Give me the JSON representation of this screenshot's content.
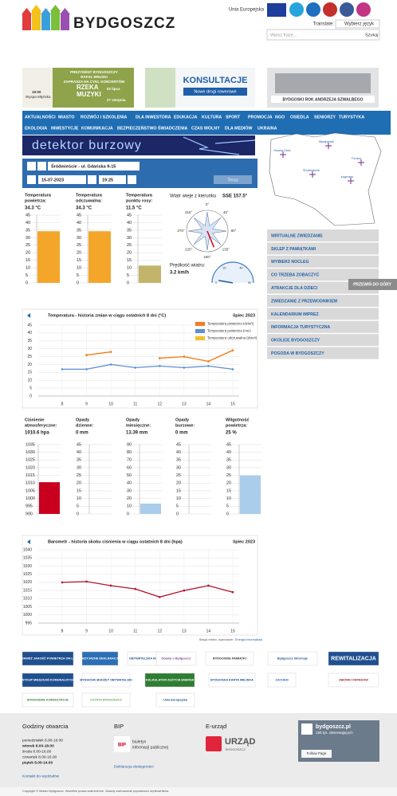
{
  "header": {
    "logo": "BYDGOSZCZ",
    "eu": "Unia Europejska",
    "translate": "Translate:",
    "language": "Wybierz język",
    "search_placeholder": "Wpisz frazę...",
    "search_button": "Szukaj"
  },
  "banners": [
    {
      "lines": [
        "PREZYDENT BYDGOSZCZY",
        "RAFAŁ BRUSKI",
        "ZAPRASZA NA CYKL KONCERTÓW"
      ],
      "title": [
        "RZEKA",
        "MUZYKI"
      ],
      "date_from": "02 lipca",
      "date_to": "27 sierpnia",
      "time": "19:00",
      "place": "Wyspa Młyńska"
    },
    {
      "title": "KONSULTACJE",
      "subtitle": "Nowe drogi rowerowe"
    },
    {
      "title": "BYDGOSKI ROK ANDRZEJA SZWALBEGO"
    }
  ],
  "nav": {
    "row1": [
      "AKTUALNOŚCI",
      "MIASTO",
      "ROZWÓJ I SZKOLENIA",
      "DLA INWESTORA",
      "EDUKACJA",
      "KULTURA",
      "SPORT",
      "PROMOCJA",
      "NGO",
      "OSIEDLA",
      "SENIORZY",
      "TURYSTYKA"
    ],
    "row2": [
      "EKOLOGIA",
      "INWESTYCJE",
      "KOMUNIKACJA",
      "BEZPIECZEŃSTWO",
      "ŚWIADCZENIA",
      "CZAS WOLNY",
      "DLA MEDIÓW",
      "UKRAINA"
    ]
  },
  "weather": {
    "banner": "detektor burzowy",
    "station": "Śródmieście - ul. Gdańska 9-15",
    "date": "15-07-2023",
    "time": "19:25",
    "now_button": "Teraz",
    "map_labels": [
      "Osowa Góra",
      "Myślęcinek",
      "Fordon",
      "Śródmieście",
      "Łęgnowo"
    ],
    "thermo_scale": {
      "ylim": [
        0,
        45
      ],
      "yticks": [
        45,
        40,
        35,
        30,
        25,
        20,
        15,
        10,
        5,
        0
      ]
    },
    "thermometers": [
      {
        "label": [
          "Temperatura",
          "powietrza:"
        ],
        "value_label": "34.3 °C",
        "value": 34.3,
        "color": "#f4a62a"
      },
      {
        "label": [
          "Temperatura",
          "odczuwalna:"
        ],
        "value_label": "34.3 °C",
        "value": 34.3,
        "color": "#f4a62a"
      },
      {
        "label": [
          "Temperatura",
          "punktu rosy:"
        ],
        "value_label": "11.5 °C",
        "value": 11.5,
        "color": "#c2b46a"
      }
    ],
    "wind": {
      "direction_label": "Wiatr wieje z kierunku",
      "direction": "SSE 157.5°",
      "direction_degrees": 157.5,
      "compass_labels": [
        "0°",
        "45°",
        "90°",
        "135°",
        "180°",
        "225°",
        "270°",
        "315°"
      ],
      "speed_label": "Prędkość wiatru:",
      "speed": "3.2 km/h",
      "speed_value": 3.2,
      "speed_ticks": [
        0,
        20,
        40,
        60
      ]
    }
  },
  "temperature_chart": {
    "type": "line",
    "title": "Temperatura - historia zmian w ciągu ostatnich 8 dni (°C)",
    "subtitle": "lipiec 2023",
    "categories": [
      "8",
      "9",
      "10",
      "11",
      "12",
      "13",
      "14",
      "15"
    ],
    "ylim": [
      0,
      45
    ],
    "yticks": [
      45,
      40,
      35,
      30,
      25,
      20,
      15,
      10,
      5,
      0
    ],
    "grid": true,
    "series": [
      {
        "name": "Temperatura powietrza (dzień)",
        "color": "#f07c22",
        "values": [
          null,
          26,
          28,
          null,
          24,
          25,
          22,
          29
        ]
      },
      {
        "name": "Temperatura powietrza (noc)",
        "color": "#5b8fd0",
        "values": [
          17,
          17,
          20,
          18,
          19,
          18,
          19,
          17
        ]
      },
      {
        "name": "Temperatura odczuwalna (dzień)",
        "color": "#f5c12a",
        "values": [
          null,
          26,
          28,
          null,
          24,
          25,
          22,
          29
        ]
      }
    ]
  },
  "gauges": [
    {
      "label": [
        "Ciśnienie",
        "atmosferyczne:"
      ],
      "value_label": "1010.6 hpa",
      "value": 1010.6,
      "color": "#c8001e",
      "ylim": [
        990,
        1035
      ],
      "yticks": [
        1035,
        1030,
        1025,
        1020,
        1015,
        1010,
        1005,
        1000,
        995,
        990
      ]
    },
    {
      "label": [
        "Opady",
        "dzienne:"
      ],
      "value_label": "0 mm",
      "value": 0,
      "color": "#a9cdea",
      "ylim": [
        0,
        45
      ],
      "yticks": [
        45,
        40,
        35,
        30,
        25,
        20,
        15,
        10,
        5,
        0
      ]
    },
    {
      "label": [
        "Opady",
        "miesięczne:"
      ],
      "value_label": "13.39 mm",
      "value": 13.39,
      "color": "#a9cdea",
      "ylim": [
        0,
        90
      ],
      "yticks": [
        90,
        80,
        70,
        60,
        50,
        40,
        30,
        20,
        10,
        0
      ]
    },
    {
      "label": [
        "Opady",
        "burzowe:"
      ],
      "value_label": "0 mm",
      "value": 0,
      "color": "#a9cdea",
      "ylim": [
        0,
        45
      ],
      "yticks": [
        45,
        40,
        35,
        30,
        25,
        20,
        15,
        10,
        5,
        0
      ]
    },
    {
      "label": [
        "Wilgotność",
        "powietrza:"
      ],
      "value_label": "25 %",
      "value": 25,
      "color": "#a9cdea",
      "ylim": [
        0,
        45
      ],
      "yticks": [
        45,
        40,
        35,
        30,
        25,
        20,
        15,
        10,
        5,
        0
      ]
    }
  ],
  "pressure_chart": {
    "type": "line",
    "title": "Barometr - historia skoku ciśnienia w ciągu ostatnich 8 dni (hpa)",
    "subtitle": "lipiec 2023",
    "categories": [
      "8",
      "9",
      "10",
      "11",
      "12",
      "13",
      "14",
      "15"
    ],
    "ylim": [
      995,
      1040
    ],
    "yticks": [
      1040,
      1035,
      1030,
      1025,
      1020,
      1015,
      1010,
      1005,
      1000,
      995
    ],
    "grid": true,
    "series": [
      {
        "name": "Ciśnienie",
        "color": "#b5122b",
        "values": [
          1020,
          1020.5,
          1018,
          1016,
          1011,
          1015,
          1018,
          1014
        ]
      }
    ]
  },
  "credit": {
    "text": "Stacja meteo. wykonanie:",
    "link": "Energia Informatyka"
  },
  "sidebar": {
    "items": [
      "WIRTUALNE ZWIEDZANIE",
      "SKLEP Z PAMIĄTKAMI",
      "WYBIERZ NOCLEG",
      "CO TRZEBA ZOBACZYĆ",
      "ATRAKCJE DLA DZIECI",
      "ZWIEDZANIE Z PRZEWODNIKIEM",
      "KALENDARIUM IMPREZ",
      "INFORMACJA TURYSTYCZNA",
      "OKOLICE BYDGOSZCZY",
      "POGODA W BYDGOSZCZY"
    ],
    "scroll_top": "PRZEWIŃ DO GÓRY"
  },
  "logos": [
    "SPRAWDŹ JAKOŚĆ POWIETRZA ON-LINE",
    "PRZYJAZNE DEKLARACJE",
    "OBYWATELSKA RADA",
    "Obamy o Bydgoszcz",
    "BYDGOSKIE PAMIĄTKI",
    "Bydgoszcz Informuje",
    "REWITALIZACJA",
    "WYKUP MIESZKAŃ KOMUNALNYCH",
    "BYDGOSKI BUDŻET OBYWATELSKI",
    "KALKULATOR ZUŻYCIA ENERGII",
    "BYDGOSKA KARTA MIEJSKA",
    "ZACHEM",
    "ZBIÓRKI ODPADÓW",
    "BYDGOSKIE KONSULTACJE",
    "CZYSTA BYDGOSZCZ",
    "Unia Europejska"
  ],
  "footer": {
    "hours_title": "Godziny otwarcia",
    "hours": [
      "poniedziałek 8.00-16.00",
      "wtorek 8.00-18.00",
      "środa 8.00-16.00",
      "czwartek 8.00-16.00",
      "piątek 8.00-14.00"
    ],
    "contact": "Kontakt do wydziałów",
    "bip_title": "BIP",
    "bip": [
      "biuletyn",
      "informacji publicznej"
    ],
    "accessibility": "Deklaracja dostępności",
    "eurzad_title": "E-urząd",
    "eurzad": "URZĄD",
    "eurzad_sub": "BYDGOSZCZ",
    "fb_name": "bydgoszcz.pl",
    "fb_followers": "155 tys. obserwujących",
    "fb_button": "Follow Page",
    "copyright": "Copyright © Miasto Bydgoszcz. Wszelkie prawa zastrzeżone. Zasady zachowania prywatności użytkowników."
  }
}
